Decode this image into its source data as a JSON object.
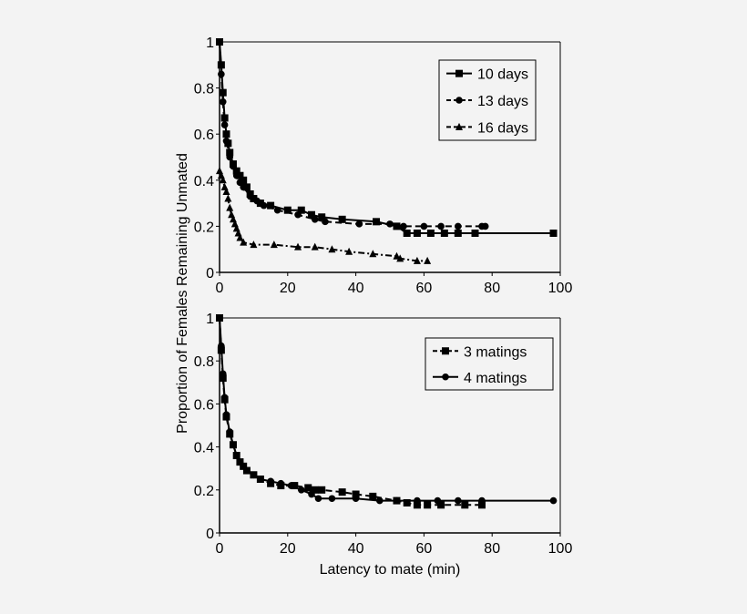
{
  "colors": {
    "background": "#f3f3f3",
    "ink": "#000000",
    "plot_bg": "#f3f3f3"
  },
  "chart_data": [
    {
      "type": "line",
      "panel": "top",
      "ylabel": "Proportion of Females Remaining Unmated",
      "xlabel": "",
      "xlim": [
        0,
        100
      ],
      "ylim": [
        0,
        1
      ],
      "x_ticks": [
        "0",
        "20",
        "40",
        "60",
        "80",
        "100"
      ],
      "y_ticks": [
        "0",
        "0.2",
        "0.4",
        "0.6",
        "0.8",
        "1"
      ],
      "grid": false,
      "legend_placement": "top-right",
      "series": [
        {
          "name": "10 days",
          "marker": "square",
          "line": "solid",
          "x": [
            0,
            0.5,
            1,
            1.5,
            2,
            2.5,
            3,
            4,
            5,
            6,
            7,
            8,
            9,
            10,
            12,
            15,
            20,
            24,
            27,
            30,
            36,
            46,
            52,
            55,
            58,
            62,
            66,
            70,
            75,
            98
          ],
          "y": [
            1,
            0.9,
            0.78,
            0.67,
            0.6,
            0.56,
            0.52,
            0.47,
            0.44,
            0.42,
            0.4,
            0.37,
            0.34,
            0.32,
            0.3,
            0.29,
            0.27,
            0.27,
            0.25,
            0.24,
            0.23,
            0.22,
            0.2,
            0.17,
            0.17,
            0.17,
            0.17,
            0.17,
            0.17,
            0.17
          ]
        },
        {
          "name": "13 days",
          "marker": "circle",
          "line": "dashed",
          "x": [
            0,
            0.5,
            1,
            1.5,
            2,
            3,
            4,
            5,
            6,
            7,
            9,
            11,
            13,
            17,
            23,
            28,
            31,
            41,
            50,
            54,
            60,
            65,
            70,
            77,
            78
          ],
          "y": [
            1,
            0.86,
            0.74,
            0.64,
            0.57,
            0.5,
            0.46,
            0.42,
            0.39,
            0.37,
            0.33,
            0.31,
            0.29,
            0.27,
            0.25,
            0.23,
            0.22,
            0.21,
            0.21,
            0.2,
            0.2,
            0.2,
            0.2,
            0.2,
            0.2
          ]
        },
        {
          "name": "16 days",
          "marker": "triangle",
          "line": "dashdot",
          "x": [
            0,
            0.5,
            1,
            1.5,
            2,
            2.5,
            3,
            3.5,
            4,
            4.5,
            5,
            5.5,
            6,
            7,
            10,
            16,
            23,
            28,
            33,
            38,
            45,
            52,
            53,
            58,
            61
          ],
          "y": [
            0.44,
            0.42,
            0.4,
            0.37,
            0.35,
            0.32,
            0.28,
            0.25,
            0.23,
            0.21,
            0.19,
            0.17,
            0.15,
            0.13,
            0.12,
            0.12,
            0.11,
            0.11,
            0.1,
            0.09,
            0.08,
            0.07,
            0.06,
            0.05,
            0.05
          ]
        }
      ]
    },
    {
      "type": "line",
      "panel": "bottom",
      "ylabel": "Proportion of Females Remaining Unmated",
      "xlabel": "Latency to mate (min)",
      "xlim": [
        0,
        100
      ],
      "ylim": [
        0,
        1
      ],
      "x_ticks": [
        "0",
        "20",
        "40",
        "60",
        "80",
        "100"
      ],
      "y_ticks": [
        "0",
        "0.2",
        "0.4",
        "0.6",
        "0.8",
        "1"
      ],
      "grid": false,
      "legend_placement": "top-right",
      "series": [
        {
          "name": "3 matings",
          "marker": "square",
          "line": "dashed",
          "x": [
            0,
            0.5,
            1,
            1.5,
            2,
            3,
            4,
            5,
            6,
            7,
            8,
            10,
            12,
            15,
            18,
            22,
            26,
            28,
            30,
            36,
            40,
            45,
            52,
            55,
            58,
            61,
            65,
            72,
            77
          ],
          "y": [
            1,
            0.85,
            0.72,
            0.62,
            0.54,
            0.46,
            0.41,
            0.36,
            0.33,
            0.31,
            0.29,
            0.27,
            0.25,
            0.23,
            0.22,
            0.22,
            0.21,
            0.2,
            0.2,
            0.19,
            0.18,
            0.17,
            0.15,
            0.14,
            0.13,
            0.13,
            0.13,
            0.13,
            0.13
          ]
        },
        {
          "name": "4 matings",
          "marker": "circle",
          "line": "solid",
          "x": [
            0,
            0.5,
            1,
            1.5,
            2,
            3,
            4,
            5,
            6,
            7,
            8,
            10,
            12,
            15,
            18,
            21,
            24,
            27,
            29,
            33,
            40,
            47,
            52,
            58,
            64,
            70,
            77,
            98
          ],
          "y": [
            1,
            0.87,
            0.74,
            0.63,
            0.55,
            0.47,
            0.41,
            0.36,
            0.33,
            0.31,
            0.29,
            0.27,
            0.25,
            0.24,
            0.23,
            0.22,
            0.2,
            0.18,
            0.16,
            0.16,
            0.16,
            0.15,
            0.15,
            0.15,
            0.15,
            0.15,
            0.15,
            0.15
          ]
        }
      ]
    }
  ]
}
